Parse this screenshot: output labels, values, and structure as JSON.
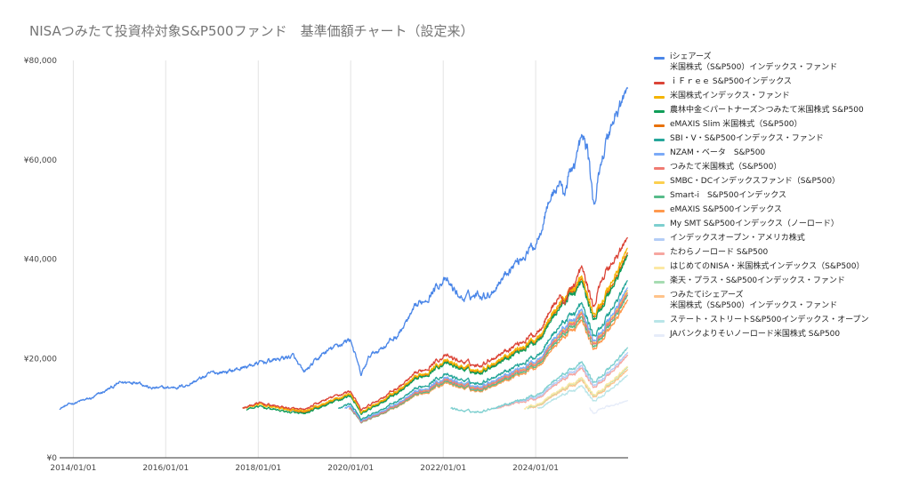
{
  "chart_data": {
    "type": "line",
    "title": "NISAつみたて投資枠対象S&P500ファンド　基準価額チャート（設定来）",
    "xlabel": "",
    "ylabel": "",
    "ylim": [
      0,
      80000
    ],
    "yticks": [
      {
        "value": 0,
        "label": "¥0"
      },
      {
        "value": 20000,
        "label": "¥20,000"
      },
      {
        "value": 40000,
        "label": "¥40,000"
      },
      {
        "value": 60000,
        "label": "¥60,000"
      },
      {
        "value": 80000,
        "label": "¥80,000"
      }
    ],
    "xlim": [
      "2013-09-15",
      "2025-12-31"
    ],
    "xticks": [
      {
        "value": "2014-01-01",
        "label": "2014/01/01"
      },
      {
        "value": "2016-01-01",
        "label": "2016/01/01"
      },
      {
        "value": "2018-01-01",
        "label": "2018/01/01"
      },
      {
        "value": "2020-01-01",
        "label": "2020/01/01"
      },
      {
        "value": "2022-01-01",
        "label": "2022/01/01"
      },
      {
        "value": "2024-01-01",
        "label": "2024/01/01"
      }
    ],
    "grid": "vertical",
    "legend_position": "right",
    "series": [
      {
        "name": "iシェアーズ\n米国株式（S&P500）インデックス・ファンド",
        "color": "#4a86e8",
        "x": [
          "2013-09-15",
          "2014-01-01",
          "2014-06-01",
          "2015-01-01",
          "2015-06-01",
          "2015-09-01",
          "2016-01-01",
          "2016-06-01",
          "2017-01-01",
          "2017-06-01",
          "2018-01-01",
          "2018-10-01",
          "2018-12-25",
          "2019-06-01",
          "2020-01-01",
          "2020-03-23",
          "2020-06-01",
          "2020-12-31",
          "2021-06-01",
          "2021-12-31",
          "2022-06-01",
          "2022-09-30",
          "2023-01-01",
          "2023-06-01",
          "2023-12-31",
          "2024-03-31",
          "2024-07-15",
          "2024-08-05",
          "2024-12-31",
          "2025-02-15",
          "2025-04-08",
          "2025-06-01",
          "2025-09-01",
          "2025-12-31"
        ],
        "values": [
          10000,
          11000,
          12000,
          15000,
          15500,
          14000,
          14000,
          14500,
          17000,
          17500,
          19000,
          20500,
          17000,
          21000,
          24000,
          16500,
          20500,
          24500,
          30000,
          36000,
          32000,
          33000,
          33000,
          38000,
          43000,
          51000,
          56000,
          53000,
          64000,
          62000,
          50000,
          60000,
          68000,
          74000
        ]
      },
      {
        "name": "ｉＦｒｅｅ S&P500インデックス",
        "color": "#db4437",
        "x": [
          "2017-08-31",
          "2018-01-01",
          "2018-12-25",
          "2019-06-01",
          "2020-01-01",
          "2020-03-23",
          "2020-12-31",
          "2021-12-31",
          "2022-09-30",
          "2023-06-01",
          "2023-12-31",
          "2024-07-15",
          "2024-08-05",
          "2024-12-31",
          "2025-04-08",
          "2025-06-01",
          "2025-12-31"
        ],
        "values": [
          10000,
          11000,
          9500,
          11500,
          13500,
          9500,
          14000,
          20500,
          18500,
          22000,
          25000,
          33000,
          31000,
          38000,
          30000,
          36000,
          44000
        ]
      },
      {
        "name": "米国株式インデックス・ファンド",
        "color": "#f4b400",
        "x": [
          "2017-08-31",
          "2018-01-01",
          "2018-12-25",
          "2020-01-01",
          "2020-03-23",
          "2020-12-31",
          "2021-12-31",
          "2022-09-30",
          "2023-12-31",
          "2024-07-15",
          "2024-12-31",
          "2025-04-08",
          "2025-12-31"
        ],
        "values": [
          10000,
          10700,
          9200,
          13000,
          9000,
          13500,
          19500,
          17500,
          24000,
          31500,
          36000,
          28500,
          42000
        ]
      },
      {
        "name": "農林中金＜パートナーズ＞つみたて米国株式 S&P500",
        "color": "#0f9d58",
        "x": [
          "2017-09-30",
          "2018-01-01",
          "2018-12-25",
          "2020-01-01",
          "2020-03-23",
          "2020-12-31",
          "2021-12-31",
          "2022-09-30",
          "2023-12-31",
          "2024-07-15",
          "2024-12-31",
          "2025-04-08",
          "2025-12-31"
        ],
        "values": [
          9800,
          10300,
          8700,
          12600,
          8700,
          13000,
          19000,
          17000,
          23300,
          30500,
          35000,
          27500,
          40500
        ]
      },
      {
        "name": "eMAXIS Slim 米国株式（S&P500）",
        "color": "#e8710a",
        "x": [
          "2018-07-03",
          "2018-12-25",
          "2020-01-01",
          "2020-03-23",
          "2020-12-31",
          "2021-12-31",
          "2022-09-30",
          "2023-12-31",
          "2024-07-15",
          "2024-12-31",
          "2025-04-08",
          "2025-12-31"
        ],
        "values": [
          10000,
          8900,
          12800,
          8900,
          13200,
          19300,
          17200,
          23600,
          31000,
          35500,
          28000,
          41000
        ]
      },
      {
        "name": "SBI・V・S&P500インデックス・ファンド",
        "color": "#26a69a",
        "x": [
          "2019-09-26",
          "2020-01-01",
          "2020-03-23",
          "2020-12-31",
          "2021-12-31",
          "2022-09-30",
          "2023-12-31",
          "2024-07-15",
          "2024-12-31",
          "2025-04-08",
          "2025-12-31"
        ],
        "values": [
          10000,
          11000,
          7600,
          11400,
          16700,
          14900,
          20400,
          26800,
          30700,
          24200,
          35500
        ]
      },
      {
        "name": "NZAM・ベータ　S&P500",
        "color": "#7baaf7",
        "x": [
          "2019-11-15",
          "2020-01-01",
          "2020-03-23",
          "2020-12-31",
          "2021-12-31",
          "2022-09-30",
          "2023-12-31",
          "2024-07-15",
          "2024-12-31",
          "2025-04-08",
          "2025-12-31"
        ],
        "values": [
          10000,
          10500,
          7300,
          10900,
          16000,
          14300,
          19500,
          25600,
          29400,
          23200,
          34000
        ]
      },
      {
        "name": "つみたて米国株式（S&P500）",
        "color": "#f07b72",
        "x": [
          "2019-12-20",
          "2020-01-01",
          "2020-03-23",
          "2020-12-31",
          "2021-12-31",
          "2022-09-30",
          "2023-12-31",
          "2024-07-15",
          "2024-12-31",
          "2025-04-08",
          "2025-12-31"
        ],
        "values": [
          10000,
          10200,
          7100,
          10600,
          15600,
          13900,
          19000,
          24900,
          28600,
          22600,
          33000
        ]
      },
      {
        "name": "SMBC・DCインデックスファンド（S&P500）",
        "color": "#fcd04f",
        "x": [
          "2019-12-20",
          "2020-01-01",
          "2020-03-23",
          "2020-12-31",
          "2021-12-31",
          "2022-09-30",
          "2023-12-31",
          "2024-07-15",
          "2024-12-31",
          "2025-04-08",
          "2025-12-31"
        ],
        "values": [
          10000,
          10300,
          7200,
          10700,
          15800,
          14100,
          19200,
          25200,
          28900,
          22800,
          33500
        ]
      },
      {
        "name": "Smart-i　S&P500インデックス",
        "color": "#57bb8a",
        "x": [
          "2020-01-01",
          "2020-03-23",
          "2020-12-31",
          "2021-12-31",
          "2022-09-30",
          "2023-12-31",
          "2024-07-15",
          "2024-12-31",
          "2025-04-08",
          "2025-12-31"
        ],
        "values": [
          10000,
          7000,
          10400,
          15300,
          13600,
          18600,
          24400,
          28000,
          22100,
          32500
        ]
      },
      {
        "name": "eMAXIS S&P500インデックス",
        "color": "#ff994d",
        "x": [
          "2020-01-15",
          "2020-03-23",
          "2020-12-31",
          "2021-12-31",
          "2022-09-30",
          "2023-12-31",
          "2024-07-15",
          "2024-12-31",
          "2025-04-08",
          "2025-12-31"
        ],
        "values": [
          10000,
          7000,
          10300,
          15000,
          13400,
          18200,
          23800,
          27300,
          21600,
          31500
        ]
      },
      {
        "name": "My SMT S&P500インデックス（ノーロード）",
        "color": "#7dcfcf",
        "x": [
          "2022-03-01",
          "2022-06-01",
          "2022-09-30",
          "2023-06-01",
          "2023-12-31",
          "2024-07-15",
          "2024-12-31",
          "2025-04-08",
          "2025-12-31"
        ],
        "values": [
          10000,
          9500,
          9200,
          11000,
          12600,
          16500,
          19000,
          15000,
          22000
        ]
      },
      {
        "name": "インデックスオープン・アメリカ株式",
        "color": "#b4cdf6",
        "x": [
          "2023-02-01",
          "2023-06-01",
          "2023-12-31",
          "2024-07-15",
          "2024-12-31",
          "2025-04-08",
          "2025-12-31"
        ],
        "values": [
          10000,
          11000,
          12200,
          15900,
          18300,
          14400,
          21000
        ]
      },
      {
        "name": "たわらノーロード S&P500",
        "color": "#f6a6a0",
        "x": [
          "2023-03-01",
          "2023-06-01",
          "2023-12-31",
          "2024-07-15",
          "2024-12-31",
          "2025-04-08",
          "2025-12-31"
        ],
        "values": [
          10000,
          10800,
          11900,
          15500,
          17800,
          14000,
          20500
        ]
      },
      {
        "name": "はじめてのNISA・米国株式インデックス（S&P500）",
        "color": "#fce8a3",
        "x": [
          "2023-10-01",
          "2023-12-31",
          "2024-07-15",
          "2024-12-31",
          "2025-04-08",
          "2025-12-31"
        ],
        "values": [
          10000,
          10700,
          13800,
          15900,
          12500,
          18300
        ]
      },
      {
        "name": "楽天・プラス・S&P500インデックス・ファンド",
        "color": "#a6dcb2",
        "x": [
          "2023-10-27",
          "2023-12-31",
          "2024-07-15",
          "2024-12-31",
          "2025-04-08",
          "2025-12-31"
        ],
        "values": [
          10000,
          10600,
          13700,
          15800,
          12400,
          18100
        ]
      },
      {
        "name": "つみたてiシェアーズ\n米国株式（S&P500）インデックス・ファンド",
        "color": "#ffc38a",
        "x": [
          "2023-11-15",
          "2023-12-31",
          "2024-07-15",
          "2024-12-31",
          "2025-04-08",
          "2025-12-31"
        ],
        "values": [
          10000,
          10400,
          13400,
          15400,
          12100,
          17600
        ]
      },
      {
        "name": "ステート・ストリートS&P500インデックス・オープン",
        "color": "#b9e5e8",
        "x": [
          "2024-01-15",
          "2024-07-15",
          "2024-12-31",
          "2025-04-08",
          "2025-12-31"
        ],
        "values": [
          10000,
          12500,
          14300,
          11300,
          16500
        ]
      },
      {
        "name": "JAバンクよりそいノーロード米国株式 S&P500",
        "color": "#e6ecf9",
        "x": [
          "2025-03-01",
          "2025-04-08",
          "2025-06-01",
          "2025-12-31"
        ],
        "values": [
          10000,
          8800,
          10000,
          11400
        ]
      }
    ]
  }
}
